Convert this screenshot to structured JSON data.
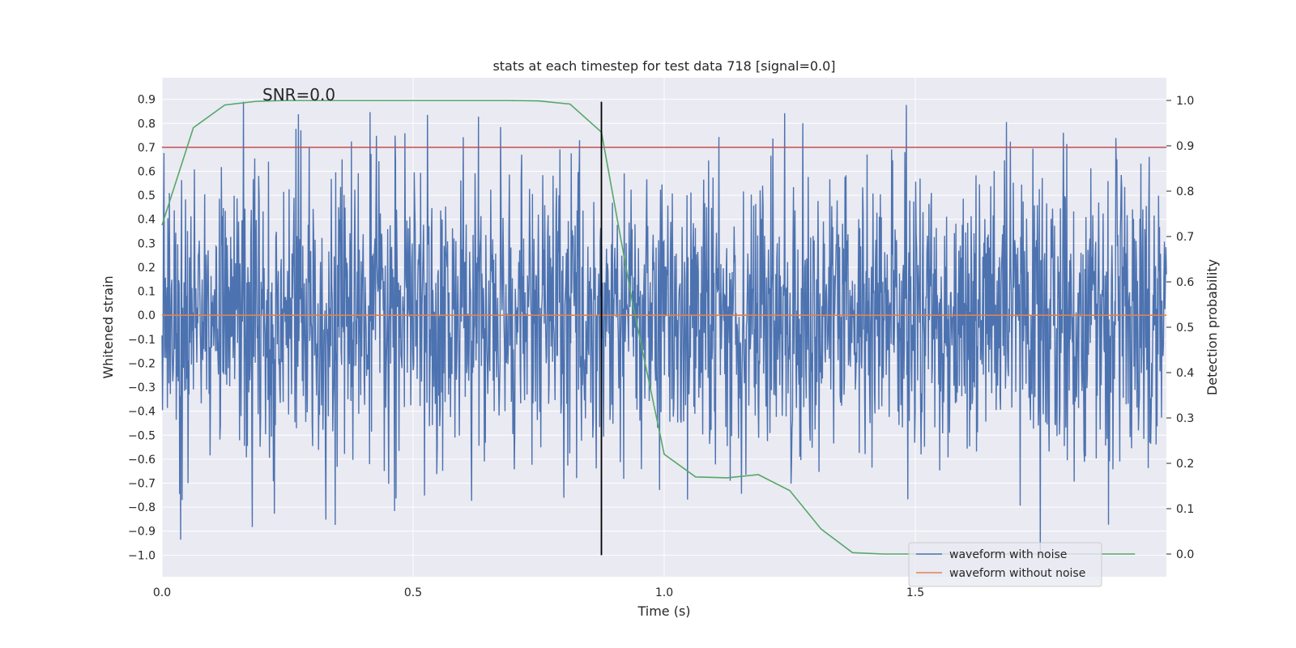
{
  "chart_data": {
    "type": "line",
    "title": "stats at each timestep for test data 718 [signal=0.0]",
    "xlabel": "Time (s)",
    "ylabel": "Whitened strain",
    "y2label": "Detection probability",
    "annotation": "SNR=0.0",
    "xlim": [
      0.0,
      2.0
    ],
    "ylim": [
      -1.09,
      0.99
    ],
    "y2lim": [
      -0.05,
      1.05
    ],
    "x_ticks": [
      0.0,
      0.5,
      1.0,
      1.5
    ],
    "x_tick_labels": [
      "0.0",
      "0.5",
      "1.0",
      "1.5"
    ],
    "y_ticks": [
      0.9,
      0.8,
      0.7,
      0.6,
      0.5,
      0.4,
      0.3,
      0.2,
      0.1,
      0.0,
      -0.1,
      -0.2,
      -0.3,
      -0.4,
      -0.5,
      -0.6,
      -0.7,
      -0.8,
      -0.9,
      -1.0
    ],
    "y_tick_labels": [
      "0.9",
      "0.8",
      "0.7",
      "0.6",
      "0.5",
      "0.4",
      "0.3",
      "0.2",
      "0.1",
      "0.0",
      "−0.1",
      "−0.2",
      "−0.3",
      "−0.4",
      "−0.5",
      "−0.6",
      "−0.7",
      "−0.8",
      "−0.9",
      "−1.0"
    ],
    "y2_ticks": [
      1.0,
      0.9,
      0.8,
      0.7,
      0.6,
      0.5,
      0.4,
      0.3,
      0.2,
      0.1,
      0.0
    ],
    "y2_tick_labels": [
      "1.0",
      "0.9",
      "0.8",
      "0.7",
      "0.6",
      "0.5",
      "0.4",
      "0.3",
      "0.2",
      "0.1",
      "0.0"
    ],
    "threshold": 0.7,
    "marker_time": 0.875,
    "legend": [
      {
        "label": "waveform with noise",
        "color": "#4c72b0"
      },
      {
        "label": "waveform without noise",
        "color": "#dd8452"
      }
    ],
    "series": [
      {
        "name": "waveform with noise",
        "color": "#4c72b0",
        "samples": 2048,
        "x_range": [
          0.0,
          2.0
        ],
        "approx_amplitude": 0.3,
        "axis": "left"
      },
      {
        "name": "waveform without noise",
        "color": "#dd8452",
        "x": [
          0.0,
          2.0
        ],
        "values": [
          0.0,
          0.0
        ],
        "axis": "left"
      },
      {
        "name": "detection probability",
        "color": "#55a868",
        "axis": "right",
        "x": [
          0.0,
          0.0625,
          0.125,
          0.1875,
          0.25,
          0.3125,
          0.375,
          0.4375,
          0.5,
          0.5625,
          0.625,
          0.6875,
          0.75,
          0.8125,
          0.875,
          0.9375,
          1.0,
          1.0625,
          1.125,
          1.1875,
          1.25,
          1.3125,
          1.375,
          1.4375,
          1.5,
          1.5625,
          1.625,
          1.6875,
          1.75,
          1.8125,
          1.875,
          1.9375
        ],
        "values": [
          0.725,
          0.94,
          0.99,
          0.998,
          1.0,
          1.0,
          1.0,
          1.0,
          1.0,
          1.0,
          1.0,
          1.0,
          0.999,
          0.992,
          0.93,
          0.55,
          0.22,
          0.17,
          0.168,
          0.175,
          0.14,
          0.055,
          0.003,
          0.0,
          0.0,
          0.0,
          0.0,
          0.0,
          0.0,
          0.0,
          0.0,
          0.0
        ]
      },
      {
        "name": "threshold",
        "color": "#c44e52",
        "axis": "left",
        "x": [
          0.0,
          2.0
        ],
        "values": [
          0.7,
          0.7
        ]
      },
      {
        "name": "marker",
        "color": "#000000",
        "axis": "left",
        "x": [
          0.875,
          0.875
        ],
        "values": [
          -1.0,
          0.89
        ]
      }
    ]
  }
}
